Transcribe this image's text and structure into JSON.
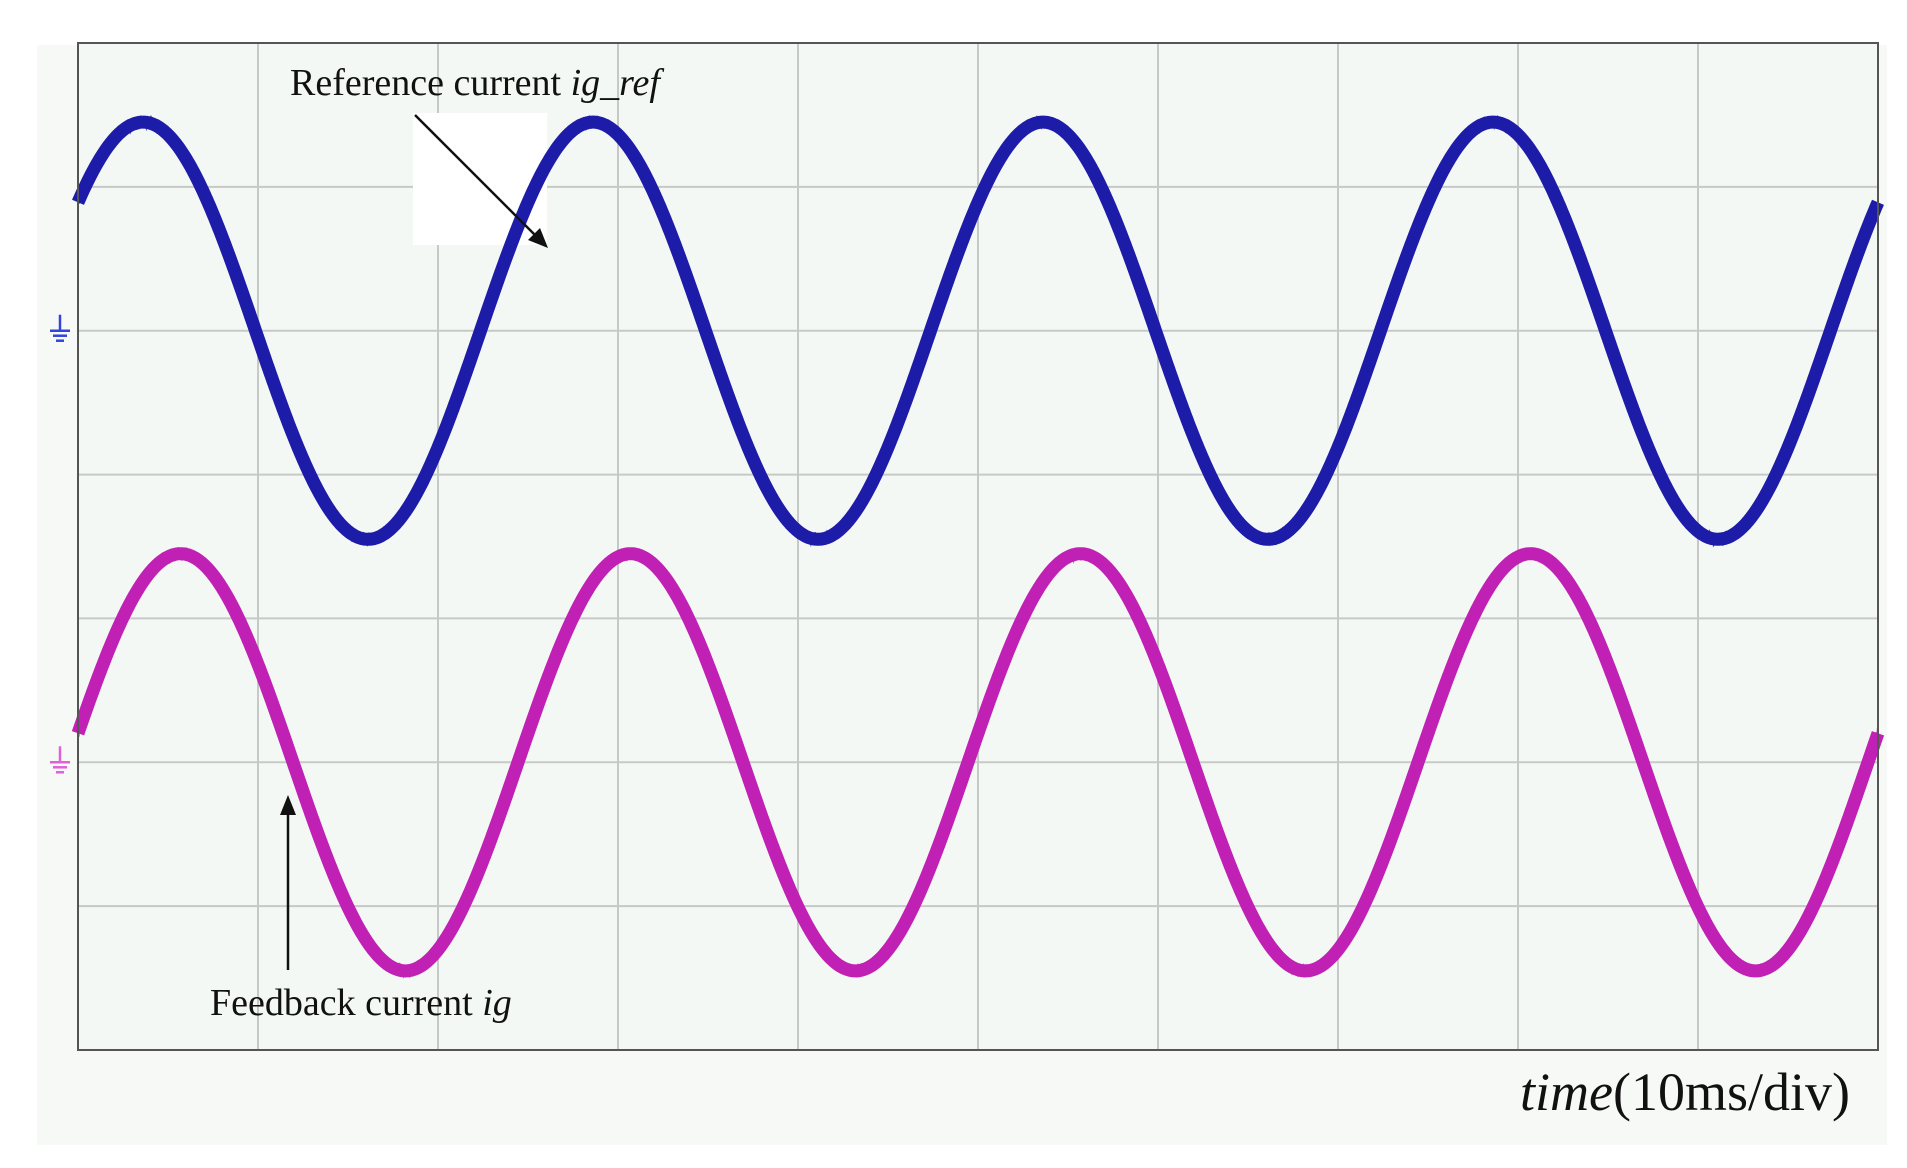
{
  "chart_data": {
    "type": "line",
    "xlabel": {
      "name": "time",
      "unit": "(10ms/div)"
    },
    "x_divisions": 10,
    "y_divisions": 7,
    "xlim_ms": [
      0,
      100
    ],
    "grid": true,
    "background": "#f4f8f4",
    "grid_color": "#c7c9c7",
    "frame_color": "#555555",
    "series": [
      {
        "name": "Reference current ig_ref",
        "color": "#1c1ca8",
        "frequency_hz": 40,
        "amplitude_div": 1.45,
        "offset_div": 5.0,
        "phase_deg": 38,
        "noise_div": 0.05,
        "marker_color": "#3344dd"
      },
      {
        "name": "Feedback current ig",
        "color": "#c020b4",
        "frequency_hz": 40,
        "amplitude_div": 1.45,
        "offset_div": 2.0,
        "phase_deg": 8,
        "noise_div": 0.05,
        "marker_color": "#e060d8"
      }
    ],
    "annotations": [
      {
        "label": "Reference current ",
        "italic": "ig_ref"
      },
      {
        "label": "Feedback current ",
        "italic": "ig"
      }
    ]
  }
}
